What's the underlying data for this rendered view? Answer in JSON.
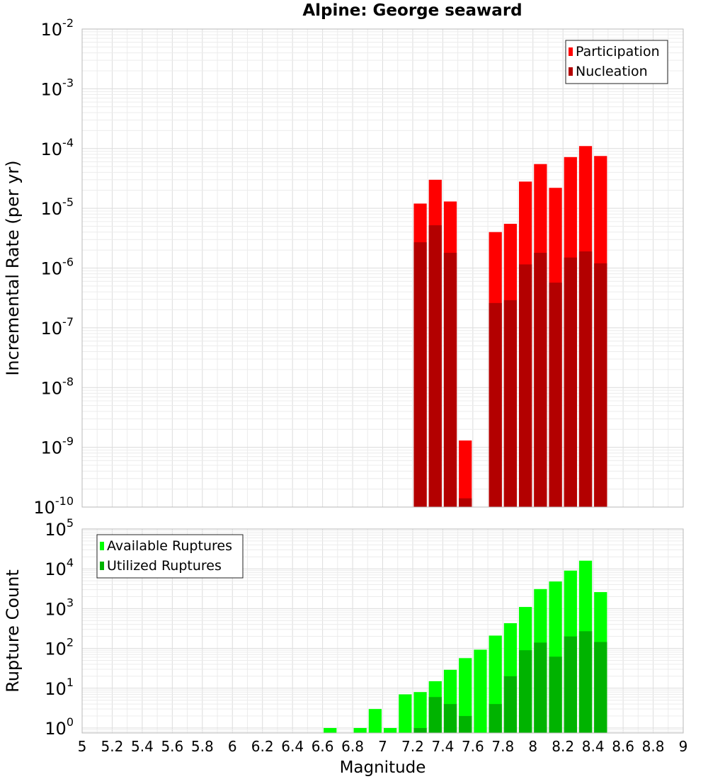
{
  "chart_data": [
    {
      "type": "bar",
      "title": "Alpine: George seaward",
      "xlabel": "",
      "ylabel": "Incremental Rate (per yr)",
      "yscale": "log",
      "ylim": [
        1e-10,
        0.01
      ],
      "xlim": [
        5,
        9
      ],
      "bin_width": 0.1,
      "legend_position": "top-right",
      "x": [
        7.25,
        7.35,
        7.45,
        7.55,
        7.75,
        7.85,
        7.95,
        8.05,
        8.15,
        8.25,
        8.35,
        8.45
      ],
      "series": [
        {
          "name": "Participation",
          "color": "#ff0000",
          "values": [
            1.2e-05,
            3e-05,
            1.3e-05,
            1.3e-09,
            4e-06,
            5.5e-06,
            2.8e-05,
            5.5e-05,
            2.2e-05,
            7.2e-05,
            0.00011,
            7.5e-05
          ]
        },
        {
          "name": "Nucleation",
          "color": "#b30000",
          "values": [
            2.7e-06,
            5.2e-06,
            1.8e-06,
            1.4e-10,
            2.6e-07,
            2.9e-07,
            1.15e-06,
            1.8e-06,
            5.7e-07,
            1.5e-06,
            1.9e-06,
            1.2e-06
          ]
        }
      ]
    },
    {
      "type": "bar",
      "title": "",
      "xlabel": "Magnitude",
      "ylabel": "Rupture Count",
      "yscale": "log",
      "ylim": [
        0.75,
        100000
      ],
      "xlim": [
        5,
        9
      ],
      "bin_width": 0.1,
      "legend_position": "top-left",
      "x_ticks": [
        "5",
        "5.2",
        "5.4",
        "5.6",
        "5.8",
        "6",
        "6.2",
        "6.4",
        "6.6",
        "6.8",
        "7",
        "7.2",
        "7.4",
        "7.6",
        "7.8",
        "8",
        "8.2",
        "8.4",
        "8.6",
        "8.8",
        "9"
      ],
      "x": [
        6.65,
        6.85,
        6.95,
        7.05,
        7.15,
        7.25,
        7.35,
        7.45,
        7.55,
        7.65,
        7.75,
        7.85,
        7.95,
        8.05,
        8.15,
        8.25,
        8.35,
        8.45
      ],
      "series": [
        {
          "name": "Available Ruptures",
          "color": "#00ff00",
          "values": [
            1,
            1,
            3,
            1,
            7,
            8,
            15,
            29,
            57,
            93,
            210,
            430,
            1100,
            3100,
            4800,
            9000,
            16000,
            2600
          ]
        },
        {
          "name": "Utilized Ruptures",
          "color": "#00b300",
          "values": [
            0,
            0,
            0,
            0,
            0,
            1,
            6,
            4,
            2,
            0,
            4,
            20,
            90,
            140,
            62,
            200,
            270,
            145
          ]
        }
      ]
    }
  ]
}
